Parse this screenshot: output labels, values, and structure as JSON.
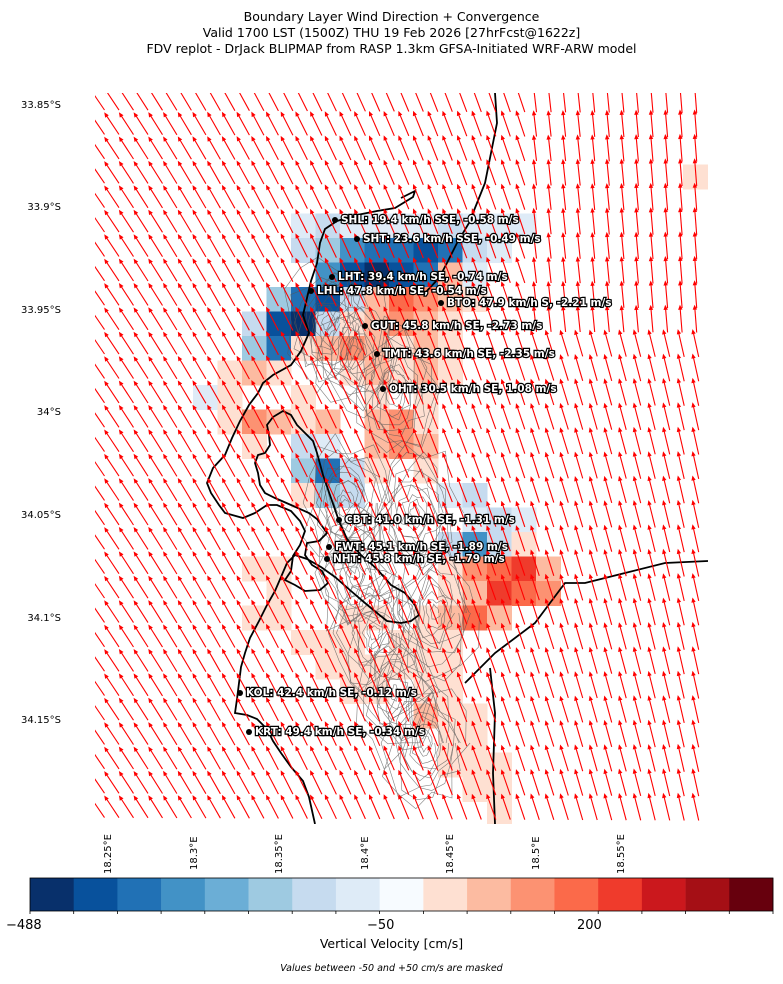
{
  "title": {
    "line1": "Boundary Layer Wind Direction + Convergence",
    "line2": "Valid 1700 LST (1500Z) THU 19 Feb 2026 [27hrFcst@1622z]",
    "line3": "FDV replot - DrJack BLIPMAP from RASP 1.3km GFSA-Initiated WRF-ARW model"
  },
  "axes": {
    "lat_labels": [
      "33.85°S",
      "33.9°S",
      "33.95°S",
      "34°S",
      "34.05°S",
      "34.1°S",
      "34.15°S"
    ],
    "lon_labels": [
      "18.25°E",
      "18.3°E",
      "18.35°E",
      "18.4°E",
      "18.45°E",
      "18.5°E",
      "18.55°E"
    ]
  },
  "stations": [
    {
      "code": "SHL",
      "text": "SHL: 19.4 km/h SSE, -0.58 m/s"
    },
    {
      "code": "SHT",
      "text": "SHT: 23.6 km/h SSE, -0.49 m/s"
    },
    {
      "code": "LHT",
      "text": "LHT: 39.4 km/h SE, -0.74 m/s"
    },
    {
      "code": "LHL",
      "text": "LHL: 47.8 km/h SE, -0.54 m/s"
    },
    {
      "code": "BTO",
      "text": "BTO: 47.9 km/h S, -2.21 m/s"
    },
    {
      "code": "GUT",
      "text": "GUT: 45.8 km/h SE, -2.73 m/s"
    },
    {
      "code": "TMT",
      "text": "TMT: 43.6 km/h SE, -2.35 m/s"
    },
    {
      "code": "OHT",
      "text": "OHT: 30.5 km/h SE, 1.08 m/s"
    },
    {
      "code": "CBT",
      "text": "CBT: 41.0 km/h SE, -1.31 m/s"
    },
    {
      "code": "FWT",
      "text": "FWT: 45.1 km/h SE, -1.89 m/s"
    },
    {
      "code": "NHT",
      "text": "NHT: 45.8 km/h SE, -1.79 m/s"
    },
    {
      "code": "KOL",
      "text": "KOL: 42.4 km/h SE, -0.12 m/s"
    },
    {
      "code": "KRT",
      "text": "KRT: 49.4 km/h SE, -0.34 m/s"
    }
  ],
  "colorbar": {
    "colors": [
      "#08306b",
      "#08519c",
      "#2171b5",
      "#4292c6",
      "#6baed6",
      "#9ecae1",
      "#c6dbef",
      "#deebf7",
      "#f7fbff",
      "#fee0d2",
      "#fcbba1",
      "#fc9272",
      "#fb6a4a",
      "#ef3b2c",
      "#cb181d",
      "#a50f15",
      "#67000d"
    ],
    "tick_labels": [
      "−488",
      "−50",
      "200"
    ],
    "title": "Vertical Velocity [cm/s]",
    "note": "Values between -50 and +50 cm/s are masked"
  },
  "wind_arrow_color": "#ff0000"
}
